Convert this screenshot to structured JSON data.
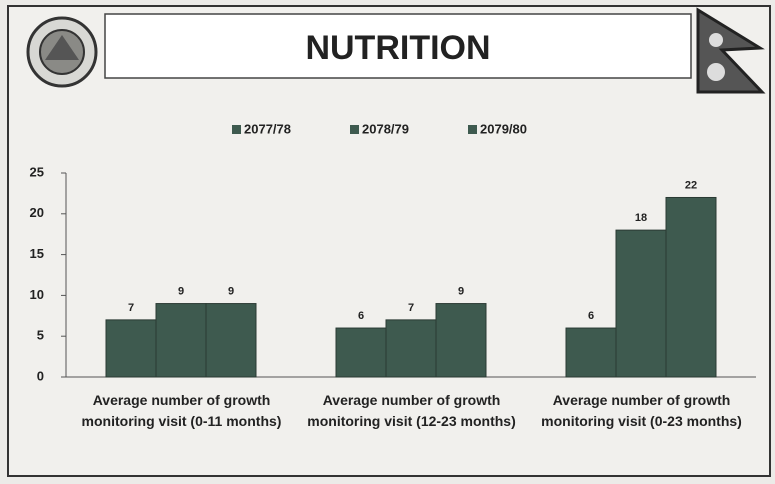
{
  "chart_data": {
    "type": "bar",
    "title": "NUTRITION",
    "categories": [
      "Average number of  growth monitoring visit (0-11 months)",
      "Average number of  growth monitoring visit (12-23 months)",
      "Average number of  growth monitoring visit (0-23 months)"
    ],
    "series": [
      {
        "name": "2077/78",
        "color": "#3e5a4f",
        "values": [
          7,
          6,
          6
        ]
      },
      {
        "name": "2078/79",
        "color": "#3e5a4f",
        "values": [
          9,
          7,
          18
        ]
      },
      {
        "name": "2079/80",
        "color": "#3e5a4f",
        "values": [
          9,
          9,
          22
        ]
      }
    ],
    "ylim": [
      0,
      25
    ],
    "yticks": [
      0,
      5,
      10,
      15,
      20,
      25
    ],
    "grid": false,
    "legend": "top"
  }
}
